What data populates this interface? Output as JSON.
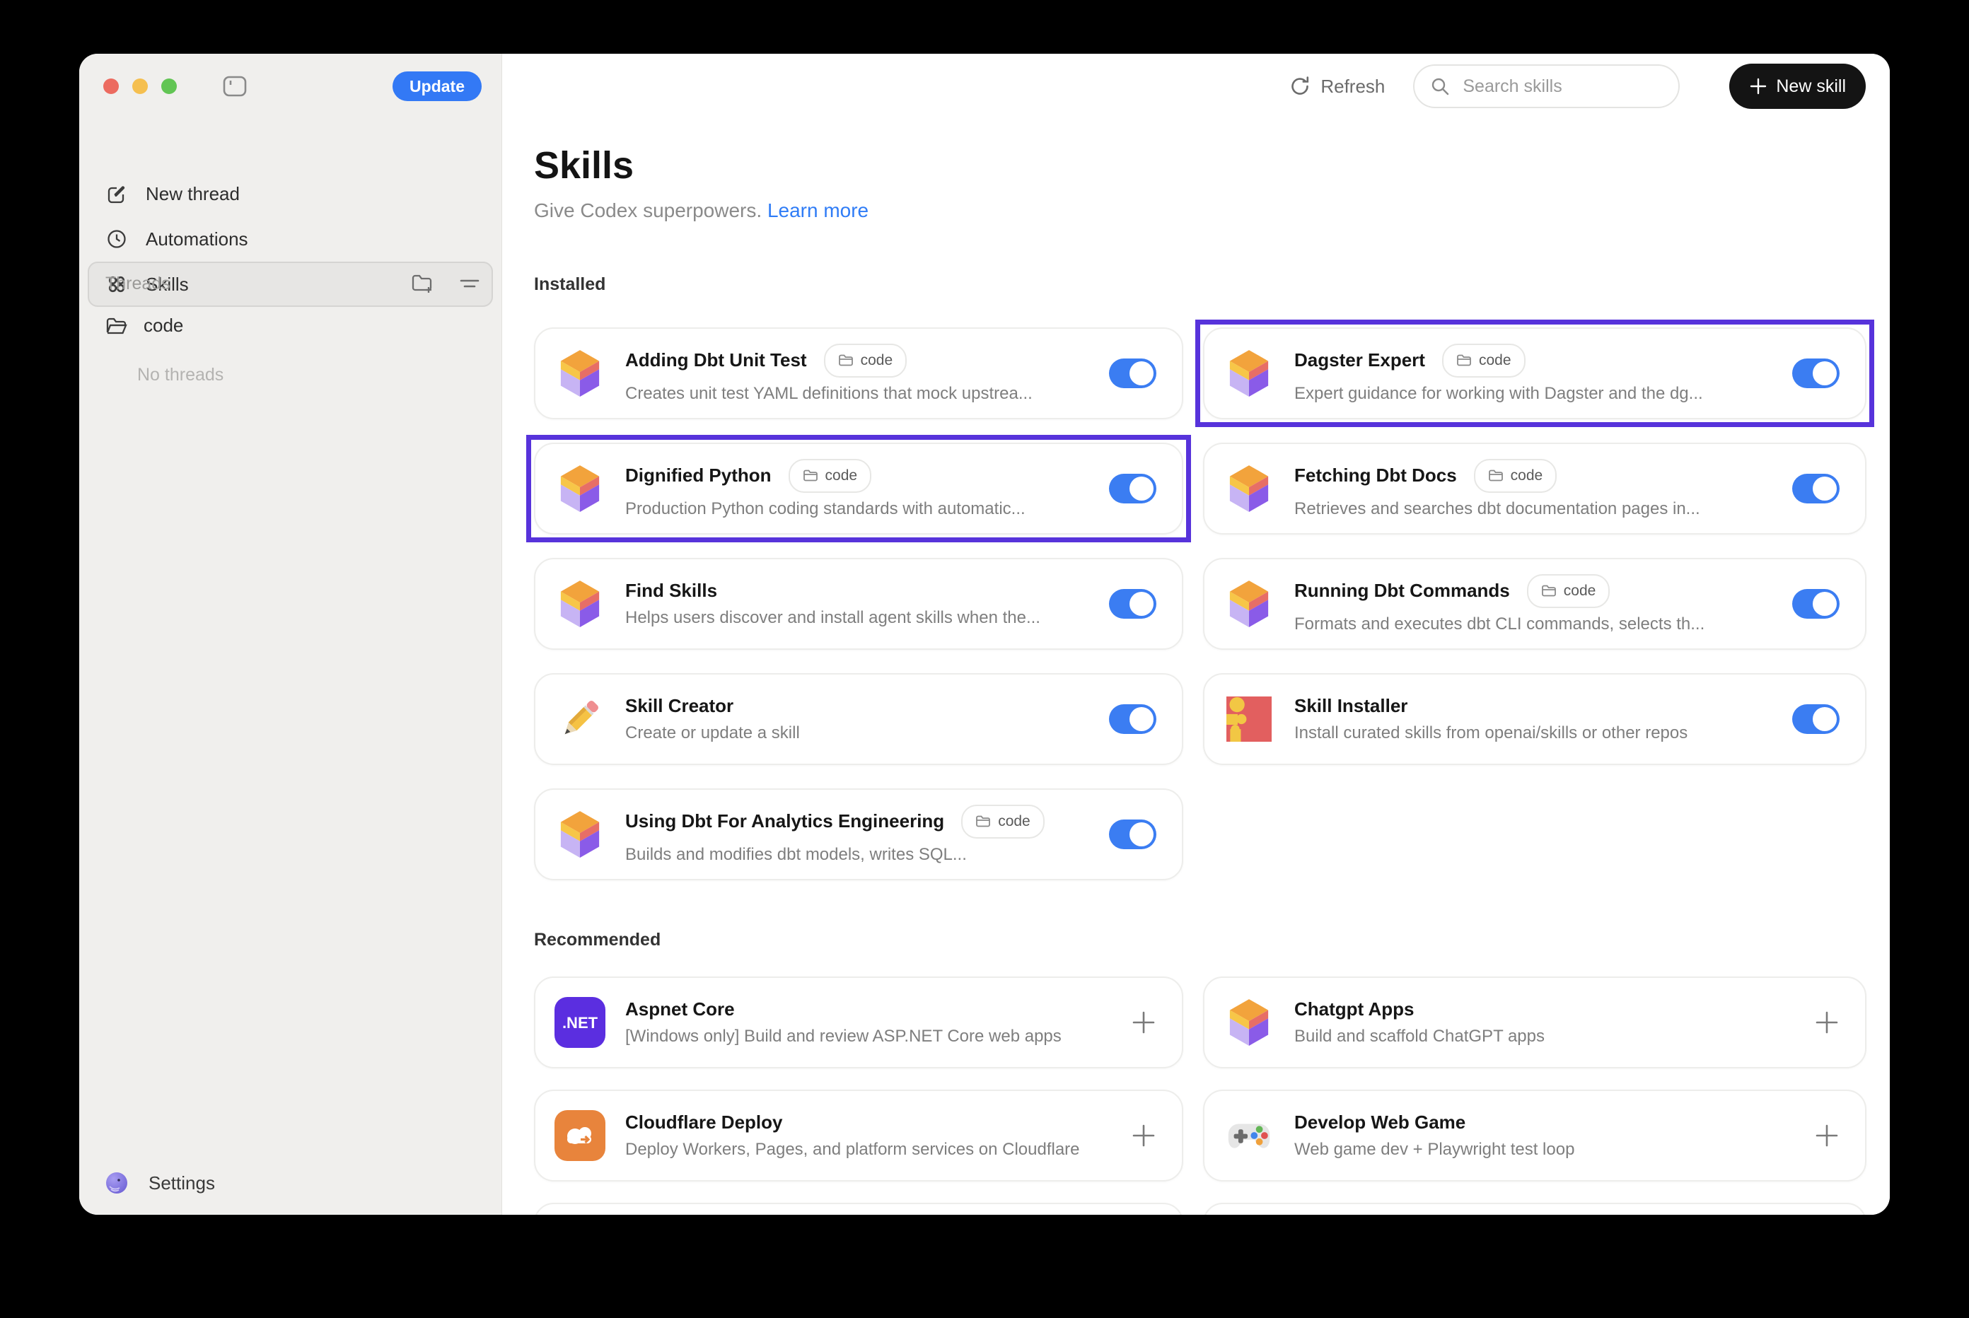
{
  "colors": {
    "toggle_on": "#3B7DF2",
    "highlight_border": "#5733DB",
    "update_button": "#3379F5",
    "link_blue": "#2F7CF6",
    "traffic_red": "#EC6B60",
    "traffic_yellow": "#F5BF4F",
    "traffic_green": "#62C554"
  },
  "sidebar": {
    "update_label": "Update",
    "nav": [
      {
        "label": "New thread",
        "icon": "compose-icon",
        "selected": false
      },
      {
        "label": "Automations",
        "icon": "clock-icon",
        "selected": false
      },
      {
        "label": "Skills",
        "icon": "grid-dots-icon",
        "selected": true
      }
    ],
    "threads": {
      "header": "Threads",
      "actions": [
        "new-folder-icon",
        "filter-icon"
      ],
      "folders": [
        {
          "label": "code",
          "icon": "folder-open-icon"
        }
      ],
      "empty_label": "No threads"
    },
    "settings_label": "Settings"
  },
  "header": {
    "refresh_label": "Refresh",
    "search_placeholder": "Search skills",
    "new_skill_label": "New skill"
  },
  "page": {
    "title": "Skills",
    "subtitle": "Give Codex superpowers.",
    "learn_more_label": "Learn more"
  },
  "installed": {
    "heading": "Installed",
    "skills": [
      {
        "name": "Adding Dbt Unit Test",
        "badge": "code",
        "description": "Creates unit test YAML definitions that mock upstrea...",
        "icon": "cube",
        "enabled": true,
        "highlighted": false
      },
      {
        "name": "Dagster Expert",
        "badge": "code",
        "description": "Expert guidance for working with Dagster and the dg...",
        "icon": "cube",
        "enabled": true,
        "highlighted": true
      },
      {
        "name": "Dignified Python",
        "badge": "code",
        "description": "Production Python coding standards with automatic...",
        "icon": "cube",
        "enabled": true,
        "highlighted": true
      },
      {
        "name": "Fetching Dbt Docs",
        "badge": "code",
        "description": "Retrieves and searches dbt documentation pages in...",
        "icon": "cube",
        "enabled": true,
        "highlighted": false
      },
      {
        "name": "Find Skills",
        "badge": null,
        "description": "Helps users discover and install agent skills when the...",
        "icon": "cube",
        "enabled": true,
        "highlighted": false
      },
      {
        "name": "Running Dbt Commands",
        "badge": "code",
        "description": "Formats and executes dbt CLI commands, selects th...",
        "icon": "cube",
        "enabled": true,
        "highlighted": false
      },
      {
        "name": "Skill Creator",
        "badge": null,
        "description": "Create or update a skill",
        "icon": "pencil",
        "enabled": true,
        "highlighted": false
      },
      {
        "name": "Skill Installer",
        "badge": null,
        "description": "Install curated skills from openai/skills or other repos",
        "icon": "puzzle",
        "enabled": true,
        "highlighted": false
      },
      {
        "name": "Using Dbt For Analytics Engineering",
        "badge": "code",
        "description": "Builds and modifies dbt models, writes SQL...",
        "icon": "cube",
        "enabled": true,
        "highlighted": false
      }
    ]
  },
  "recommended": {
    "heading": "Recommended",
    "skills": [
      {
        "name": "Aspnet Core",
        "description": "[Windows only] Build and review ASP.NET Core web apps",
        "icon": "dotnet"
      },
      {
        "name": "Chatgpt Apps",
        "description": "Build and scaffold ChatGPT apps",
        "icon": "cube"
      },
      {
        "name": "Cloudflare Deploy",
        "description": "Deploy Workers, Pages, and platform services on Cloudflare",
        "icon": "cloudflare"
      },
      {
        "name": "Develop Web Game",
        "description": "Web game dev + Playwright test loop",
        "icon": "gamepad"
      }
    ]
  }
}
